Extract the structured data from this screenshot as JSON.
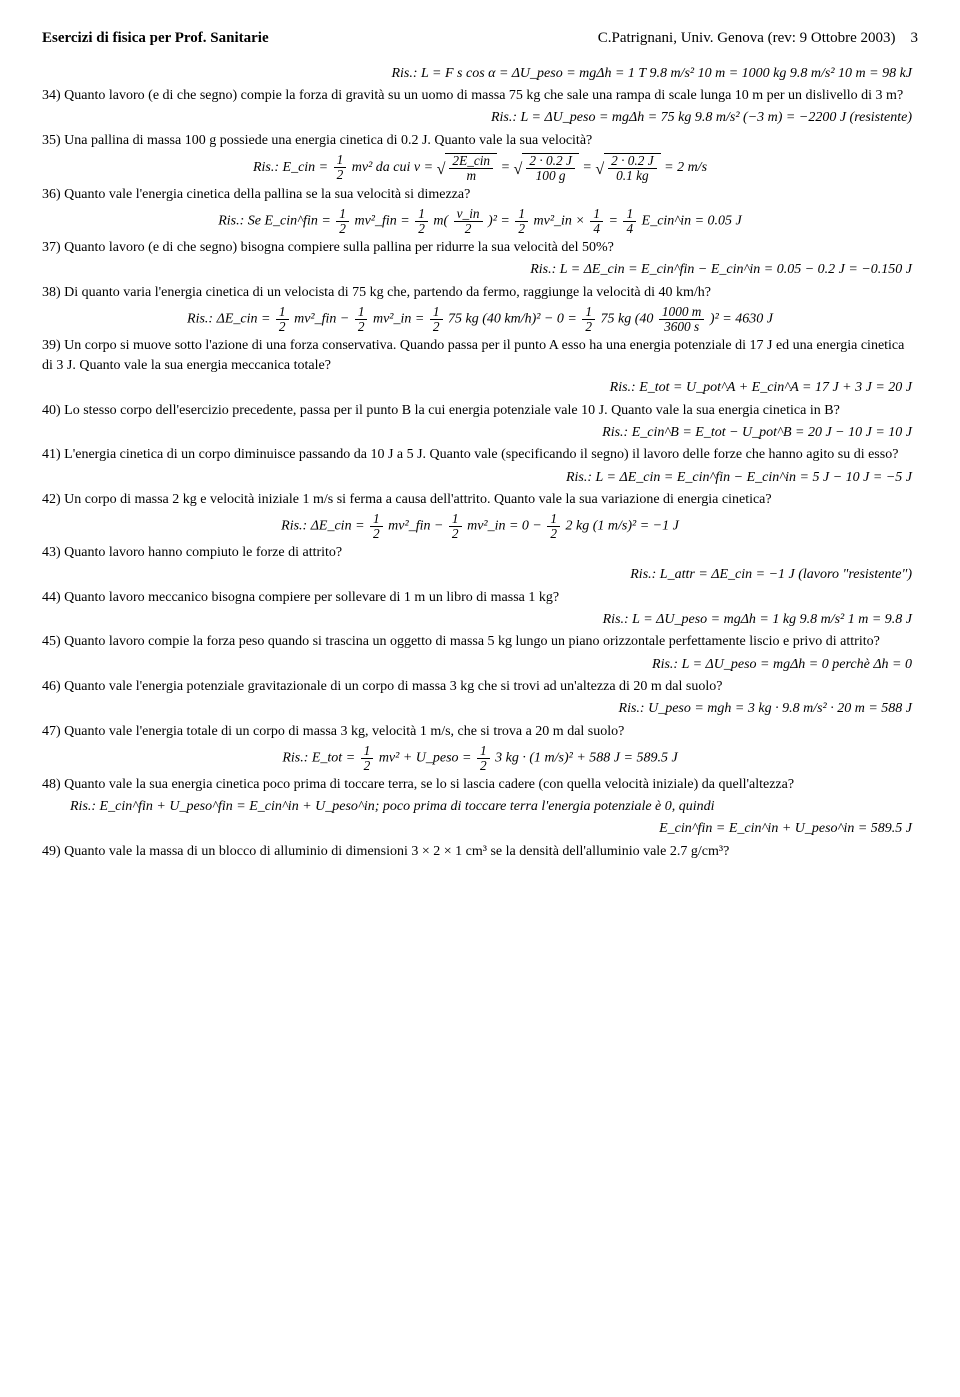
{
  "header": {
    "left": "Esercizi di fisica per Prof. Sanitarie",
    "right": "C.Patrignani, Univ. Genova (rev: 9 Ottobre 2003)",
    "page": "3"
  },
  "ex33_ris": "Ris.: L = F s cos α = ΔU_peso = mgΔh = 1 T 9.8 m/s² 10 m = 1000 kg 9.8 m/s² 10 m = 98 kJ",
  "ex34_q": "Quanto lavoro (e di che segno) compie la forza di gravità su un uomo di massa 75 kg che sale una rampa di scale lunga 10 m per un dislivello di 3 m?",
  "ex34_ris": "Ris.: L = ΔU_peso = mgΔh = 75 kg 9.8 m/s² (−3 m) = −2200 J (resistente)",
  "ex35_q": "Una pallina di massa 100 g possiede una energia cinetica di 0.2 J. Quanto vale la sua velocità?",
  "ex35_ris_pre": "Ris.: E_cin = ",
  "ex35_ris_mid1": "mv²  da cui v = ",
  "ex35_ris_eq": " = ",
  "ex35_ris_end": " = 2 m/s",
  "ex35_frac_half_top": "1",
  "ex35_frac_half_bot": "2",
  "ex35_rad1_top": "2E_cin",
  "ex35_rad1_bot": "m",
  "ex35_rad2_top": "2 · 0.2 J",
  "ex35_rad2_bot": "100 g",
  "ex35_rad3_top": "2 · 0.2 J",
  "ex35_rad3_bot": "0.1 kg",
  "ex36_q": "Quanto vale l'energia cinetica della pallina se la sua velocità si dimezza?",
  "ex36_ris_pre": "Ris.: Se E_cin^fin = ",
  "ex36_ris_a": "mv²_fin = ",
  "ex36_ris_b": "m(",
  "ex36_ris_c": ")² = ",
  "ex36_ris_d": "mv²_in × ",
  "ex36_ris_e": " = ",
  "ex36_ris_f": "E_cin^in = 0.05 J",
  "ex36_vin_top": "v_in",
  "ex36_vin_bot": "2",
  "ex36_quarter_top": "1",
  "ex36_quarter_bot": "4",
  "ex37_q": "Quanto lavoro (e di che segno) bisogna compiere sulla pallina per ridurre la sua velocità del 50%?",
  "ex37_ris": "Ris.: L = ΔE_cin = E_cin^fin − E_cin^in = 0.05 − 0.2 J = −0.150 J",
  "ex38_q": "Di quanto varia l'energia cinetica di un velocista di 75 kg che, partendo da fermo, raggiunge la velocità di 40 km/h?",
  "ex38_ris_pre": "Ris.: ΔE_cin = ",
  "ex38_ris_a": "mv²_fin − ",
  "ex38_ris_b": "mv²_in = ",
  "ex38_ris_c": "75 kg (40 km/h)² − 0 = ",
  "ex38_ris_d": "75 kg (40",
  "ex38_ris_e": ")² = 4630 J",
  "ex38_bigfrac_top": "1000 m",
  "ex38_bigfrac_bot": "3600 s",
  "ex39_q": "Un corpo si muove sotto l'azione di una forza conservativa. Quando passa per il punto A esso ha una energia potenziale di 17 J ed una energia cinetica di 3 J. Quanto vale la sua energia meccanica totale?",
  "ex39_ris": "Ris.: E_tot = U_pot^A + E_cin^A = 17 J + 3 J = 20 J",
  "ex40_q": "Lo stesso corpo dell'esercizio precedente, passa per il punto B la cui energia potenziale vale 10 J. Quanto vale la sua energia cinetica in B?",
  "ex40_ris": "Ris.: E_cin^B = E_tot − U_pot^B = 20 J − 10 J = 10 J",
  "ex41_q": "L'energia cinetica di un corpo diminuisce passando da 10 J a 5 J. Quanto vale (specificando il segno) il lavoro delle forze che hanno agito su di esso?",
  "ex41_ris": "Ris.: L = ΔE_cin = E_cin^fin − E_cin^in = 5 J − 10 J = −5 J",
  "ex42_q": "Un corpo di massa 2 kg e velocità iniziale 1 m/s si ferma a causa dell'attrito. Quanto vale la sua variazione di energia cinetica?",
  "ex42_ris_pre": "Ris.: ΔE_cin = ",
  "ex42_ris_a": "mv²_fin − ",
  "ex42_ris_b": "mv²_in = 0 − ",
  "ex42_ris_c": "2 kg (1 m/s)² = −1 J",
  "ex43_q": "Quanto lavoro hanno compiuto le forze di attrito?",
  "ex43_ris": "Ris.: L_attr = ΔE_cin = −1 J (lavoro \"resistente\")",
  "ex44_q": "Quanto lavoro meccanico bisogna compiere per sollevare di 1 m un libro di massa 1 kg?",
  "ex44_ris": "Ris.: L = ΔU_peso = mgΔh = 1 kg 9.8 m/s² 1 m = 9.8 J",
  "ex45_q": "Quanto lavoro compie la forza peso quando si trascina un oggetto di massa 5 kg lungo un piano orizzontale perfettamente liscio e privo di attrito?",
  "ex45_ris": "Ris.: L = ΔU_peso = mgΔh = 0 perchè Δh = 0",
  "ex46_q": "Quanto vale l'energia potenziale gravitazionale di un corpo di massa 3 kg che si trovi ad un'altezza di 20 m dal suolo?",
  "ex46_ris": "Ris.: U_peso = mgh = 3 kg · 9.8 m/s² · 20 m = 588 J",
  "ex47_q": "Quanto vale l'energia totale di un corpo di massa 3 kg, velocità 1 m/s, che si trova a 20 m dal suolo?",
  "ex47_ris_pre": "Ris.: E_tot = ",
  "ex47_ris_a": "mv² + U_peso = ",
  "ex47_ris_b": "3 kg · (1 m/s)² + 588 J = 589.5 J",
  "ex48_q": "Quanto vale la sua energia cinetica poco prima di toccare terra, se lo si lascia cadere (con quella velocità iniziale) da quell'altezza?",
  "ex48_ris1": "Ris.: E_cin^fin + U_peso^fin = E_cin^in + U_peso^in; poco prima di toccare terra l'energia potenziale è 0, quindi",
  "ex48_ris2": "E_cin^fin = E_cin^in + U_peso^in = 589.5 J",
  "ex49_q": "Quanto vale la massa di un blocco di alluminio di dimensioni 3 × 2 × 1 cm³ se la densità dell'alluminio vale 2.7 g/cm³?",
  "labels": {
    "n34": "34)",
    "n35": "35)",
    "n36": "36)",
    "n37": "37)",
    "n38": "38)",
    "n39": "39)",
    "n40": "40)",
    "n41": "41)",
    "n42": "42)",
    "n43": "43)",
    "n44": "44)",
    "n45": "45)",
    "n46": "46)",
    "n47": "47)",
    "n48": "48)",
    "n49": "49)"
  }
}
